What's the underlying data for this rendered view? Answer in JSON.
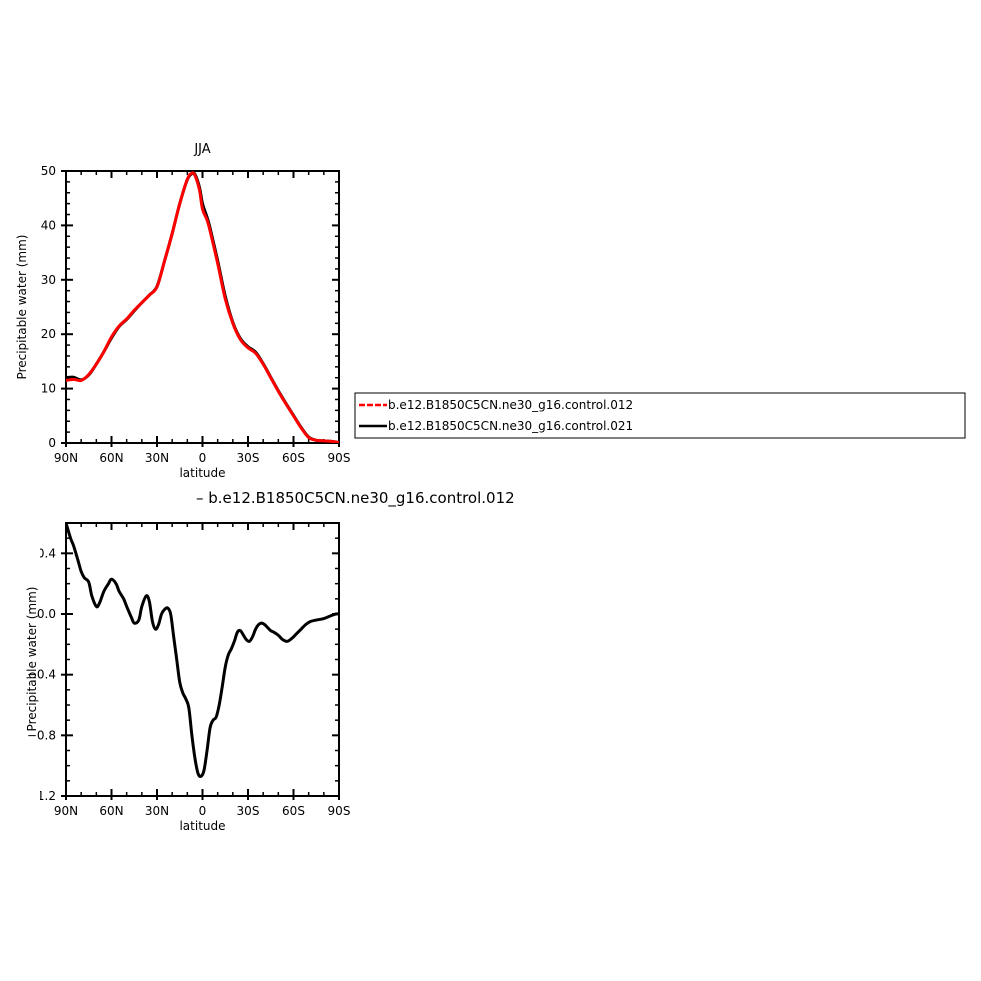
{
  "chart_data": [
    {
      "type": "line",
      "title": "JJA",
      "xlabel": "latitude",
      "ylabel": "Precipitable water (mm)",
      "xlim": [
        90,
        -90
      ],
      "ylim": [
        0,
        50
      ],
      "x_ticks": [
        90,
        60,
        30,
        0,
        -30,
        -60,
        -90
      ],
      "x_tick_labels": [
        "90N",
        "60N",
        "30N",
        "0",
        "30S",
        "60S",
        "90S"
      ],
      "y_ticks": [
        0,
        10,
        20,
        30,
        40,
        50
      ],
      "y_tick_labels": [
        "0",
        "10",
        "20",
        "30",
        "40",
        "50"
      ],
      "legend": {
        "placement": "right",
        "entries": [
          "b.e12.B1850C5CN.ne30_g16.control.012",
          "b.e12.B1850C5CN.ne30_g16.control.021"
        ]
      },
      "series": [
        {
          "name": "b.e12.B1850C5CN.ne30_g16.control.012",
          "color": "#ff0000",
          "dashed": true,
          "x": [
            90,
            85,
            80,
            75,
            70,
            65,
            60,
            55,
            50,
            45,
            40,
            35,
            30,
            25,
            20,
            15,
            10,
            7,
            5,
            2,
            0,
            -3,
            -5,
            -10,
            -15,
            -20,
            -25,
            -30,
            -35,
            -40,
            -45,
            -50,
            -55,
            -60,
            -65,
            -70,
            -75,
            -80,
            -85,
            -90
          ],
          "y": [
            11.5,
            11.7,
            11.5,
            12.6,
            14.5,
            16.8,
            19.5,
            21.5,
            22.8,
            24.4,
            25.8,
            27.2,
            28.7,
            33.5,
            38.5,
            44.0,
            48.5,
            49.6,
            49.2,
            46.5,
            43.0,
            41.0,
            39.0,
            33.0,
            26.5,
            22.0,
            19.0,
            17.5,
            16.5,
            14.5,
            12.0,
            9.5,
            7.2,
            5.0,
            2.8,
            1.0,
            0.5,
            0.4,
            0.3,
            0.1
          ]
        },
        {
          "name": "b.e12.B1850C5CN.ne30_g16.control.021",
          "color": "#000000",
          "dashed": false,
          "x": [
            90,
            85,
            80,
            75,
            70,
            65,
            60,
            55,
            50,
            45,
            40,
            35,
            30,
            25,
            20,
            15,
            10,
            7,
            5,
            2,
            0,
            -3,
            -5,
            -10,
            -15,
            -20,
            -25,
            -30,
            -35,
            -40,
            -45,
            -50,
            -55,
            -60,
            -65,
            -70,
            -75,
            -80,
            -85,
            -90
          ],
          "y": [
            12.0,
            12.1,
            11.6,
            12.5,
            14.5,
            16.8,
            19.3,
            21.4,
            22.7,
            24.3,
            25.8,
            27.2,
            28.8,
            33.5,
            38.5,
            44.0,
            48.4,
            49.5,
            49.4,
            47.0,
            44.0,
            41.5,
            39.5,
            33.5,
            27.0,
            22.2,
            19.2,
            17.7,
            16.7,
            14.6,
            12.1,
            9.6,
            7.3,
            5.1,
            2.9,
            1.1,
            0.5,
            0.4,
            0.3,
            0.1
          ]
        }
      ]
    },
    {
      "type": "line",
      "title": "– b.e12.B1850C5CN.ne30_g16.control.012",
      "xlabel": "latitude",
      "ylabel": "Precipitable water (mm)",
      "xlim": [
        90,
        -90
      ],
      "ylim": [
        -1.2,
        0.6
      ],
      "x_ticks": [
        90,
        60,
        30,
        0,
        -30,
        -60,
        -90
      ],
      "x_tick_labels": [
        "90N",
        "60N",
        "30N",
        "0",
        "30S",
        "60S",
        "90S"
      ],
      "y_ticks": [
        0.4,
        0.0,
        -0.4,
        -0.8,
        -1.2
      ],
      "y_tick_labels": [
        "0.4",
        "0.0",
        "−0.4",
        "−0.8",
        "−1.2"
      ],
      "series": [
        {
          "color": "#000000",
          "x": [
            90,
            87,
            85,
            82,
            80,
            78,
            75,
            73,
            70,
            68,
            65,
            62,
            60,
            57,
            55,
            52,
            50,
            47,
            45,
            42,
            40,
            37,
            35,
            33,
            31,
            29,
            27,
            25,
            23,
            21,
            19,
            17,
            15,
            13,
            11,
            9,
            7,
            5,
            3,
            1,
            -1,
            -3,
            -5,
            -7,
            -9,
            -11,
            -13,
            -15,
            -17,
            -19,
            -21,
            -23,
            -25,
            -27,
            -29,
            -31,
            -33,
            -35,
            -37,
            -39,
            -41,
            -43,
            -45,
            -47,
            -50,
            -53,
            -56,
            -59,
            -62,
            -65,
            -68,
            -71,
            -75,
            -80,
            -85,
            -88,
            -90
          ],
          "y": [
            0.6,
            0.5,
            0.45,
            0.35,
            0.28,
            0.24,
            0.21,
            0.12,
            0.05,
            0.07,
            0.15,
            0.2,
            0.23,
            0.2,
            0.15,
            0.1,
            0.05,
            -0.02,
            -0.06,
            -0.04,
            0.05,
            0.12,
            0.08,
            -0.05,
            -0.1,
            -0.07,
            0.0,
            0.03,
            0.04,
            0.0,
            -0.15,
            -0.3,
            -0.45,
            -0.52,
            -0.56,
            -0.62,
            -0.8,
            -0.95,
            -1.05,
            -1.07,
            -1.03,
            -0.9,
            -0.75,
            -0.7,
            -0.68,
            -0.6,
            -0.48,
            -0.35,
            -0.27,
            -0.23,
            -0.18,
            -0.12,
            -0.11,
            -0.14,
            -0.17,
            -0.18,
            -0.15,
            -0.1,
            -0.07,
            -0.06,
            -0.07,
            -0.09,
            -0.11,
            -0.12,
            -0.14,
            -0.17,
            -0.18,
            -0.16,
            -0.13,
            -0.1,
            -0.07,
            -0.05,
            -0.04,
            -0.03,
            -0.01,
            0.0,
            0.0
          ]
        }
      ]
    }
  ]
}
